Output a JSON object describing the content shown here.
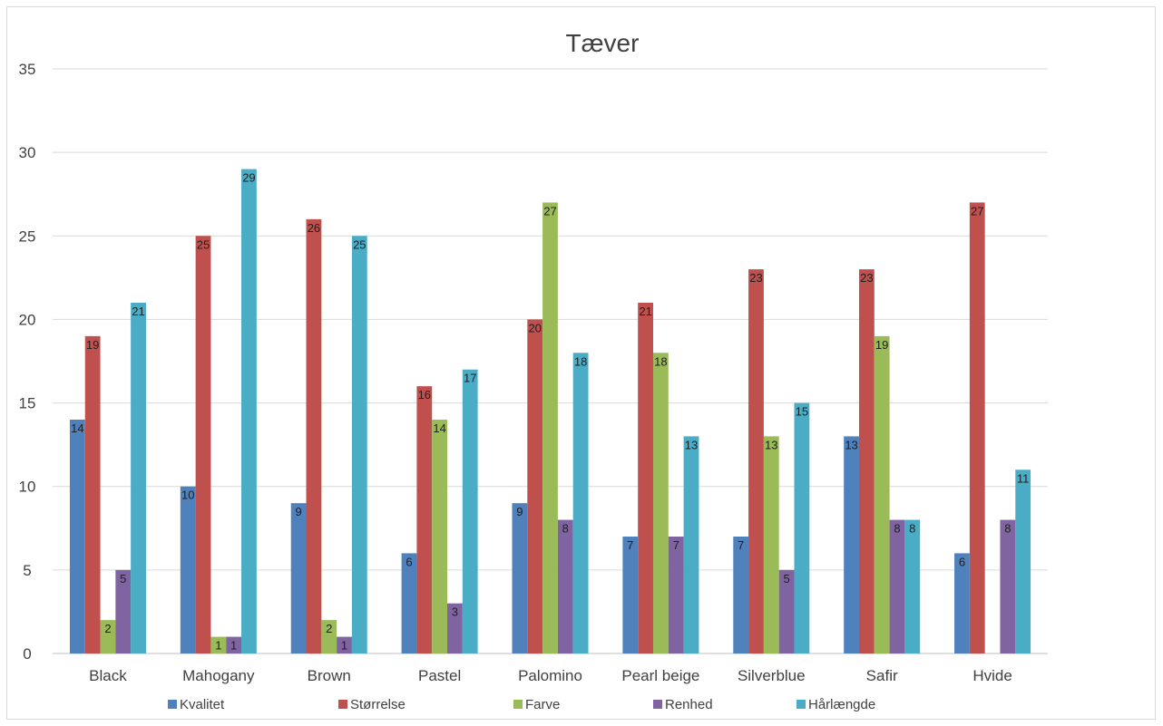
{
  "chart_data": {
    "type": "bar",
    "title": "Tæver",
    "xlabel": "",
    "ylabel": "",
    "ylim": [
      0,
      35
    ],
    "yticks": [
      0,
      5,
      10,
      15,
      20,
      25,
      30,
      35
    ],
    "grid": true,
    "legend_position": "bottom",
    "categories": [
      "Black",
      "Mahogany",
      "Brown",
      "Pastel",
      "Palomino",
      "Pearl beige",
      "Silverblue",
      "Safir",
      "Hvide"
    ],
    "series": [
      {
        "name": "Kvalitet",
        "color": "#4f81bd",
        "values": [
          14,
          10,
          9,
          6,
          9,
          7,
          7,
          13,
          6
        ]
      },
      {
        "name": "Størrelse",
        "color": "#c0504d",
        "values": [
          19,
          25,
          26,
          16,
          20,
          21,
          23,
          23,
          27
        ]
      },
      {
        "name": "Farve",
        "color": "#9bbb59",
        "values": [
          2,
          1,
          2,
          14,
          27,
          18,
          13,
          19,
          0
        ]
      },
      {
        "name": "Renhed",
        "color": "#8064a2",
        "values": [
          5,
          1,
          1,
          3,
          8,
          7,
          5,
          8,
          8
        ]
      },
      {
        "name": "Hårlængde",
        "color": "#4bacc6",
        "values": [
          21,
          29,
          25,
          17,
          18,
          13,
          15,
          8,
          11
        ]
      }
    ]
  }
}
